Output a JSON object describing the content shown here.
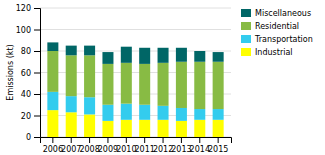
{
  "chart_data": {
    "type": "bar",
    "stacked": true,
    "categories": [
      "2006",
      "2007",
      "2008",
      "2009",
      "2010",
      "2011",
      "2012",
      "2013",
      "2014",
      "2015"
    ],
    "series": [
      {
        "name": "Industrial",
        "color": "#ffff00",
        "values": [
          25,
          23,
          21,
          15,
          16,
          16,
          16,
          15,
          16,
          16
        ]
      },
      {
        "name": "Transportation",
        "color": "#33ccee",
        "values": [
          17,
          15,
          16,
          15,
          15,
          14,
          13,
          12,
          10,
          10
        ]
      },
      {
        "name": "Residential",
        "color": "#88bb44",
        "values": [
          38,
          38,
          39,
          38,
          38,
          38,
          40,
          43,
          44,
          44
        ]
      },
      {
        "name": "Miscellaneous",
        "color": "#006666",
        "values": [
          8,
          9,
          9,
          11,
          15,
          15,
          14,
          13,
          10,
          9
        ]
      }
    ],
    "ylabel": "Emissions (kt)",
    "ylim": [
      0,
      120
    ],
    "yticks": [
      0,
      20,
      40,
      60,
      80,
      100,
      120
    ],
    "grid": true,
    "legend": "upper right"
  }
}
